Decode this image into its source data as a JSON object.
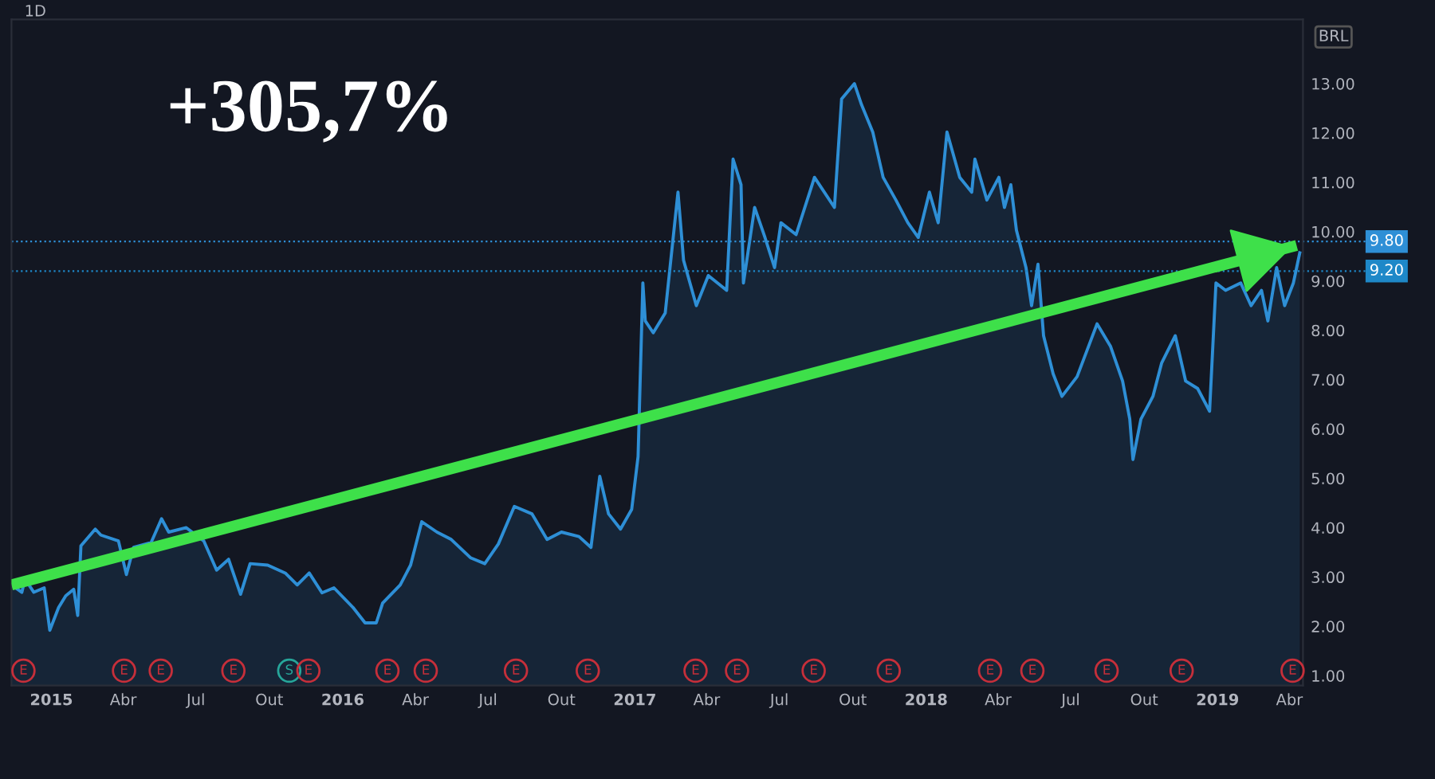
{
  "chart_data": {
    "type": "area",
    "title": "1D",
    "ylabel": "BRL",
    "annotations": [
      "+305,7%",
      {
        "text": "E",
        "x": "2014-11-27",
        "y": 1.1
      },
      {
        "text": "E",
        "x": "2015-04-02",
        "y": 1.1
      },
      {
        "text": "E",
        "x": "2015-05-18",
        "y": 1.1
      },
      {
        "text": "E",
        "x": "2015-08-17",
        "y": 1.1
      },
      {
        "text": "S",
        "x": "2015-10-26",
        "y": 1.1
      },
      {
        "text": "E",
        "x": "2015-11-19",
        "y": 1.1
      },
      {
        "text": "E",
        "x": "2016-02-26",
        "y": 1.1
      },
      {
        "text": "E",
        "x": "2016-04-14",
        "y": 1.1
      },
      {
        "text": "E",
        "x": "2016-08-05",
        "y": 1.1
      },
      {
        "text": "E",
        "x": "2016-11-03",
        "y": 1.1
      },
      {
        "text": "E",
        "x": "2017-03-18",
        "y": 1.1
      },
      {
        "text": "E",
        "x": "2017-05-09",
        "y": 1.1
      },
      {
        "text": "E",
        "x": "2017-08-13",
        "y": 1.1
      },
      {
        "text": "E",
        "x": "2017-11-15",
        "y": 1.1
      },
      {
        "text": "E",
        "x": "2018-03-22",
        "y": 1.1
      },
      {
        "text": "E",
        "x": "2018-05-14",
        "y": 1.1
      },
      {
        "text": "E",
        "x": "2018-08-15",
        "y": 1.1
      },
      {
        "text": "E",
        "x": "2018-11-17",
        "y": 1.1
      },
      {
        "text": "E",
        "x": "2019-04-05",
        "y": 1.1
      }
    ],
    "series": [
      {
        "type": "area",
        "color": "#2e8fd6",
        "x": [
          "2014-11-12",
          "2014-11-25",
          "2014-11-29",
          "2014-12-10",
          "2014-12-23",
          "2014-12-30",
          "2015-01-10",
          "2015-01-19",
          "2015-01-29",
          "2015-02-03",
          "2015-02-07",
          "2015-02-25",
          "2015-03-04",
          "2015-03-26",
          "2015-04-05",
          "2015-04-14",
          "2015-05-06",
          "2015-05-19",
          "2015-05-28",
          "2015-06-19",
          "2015-07-11",
          "2015-07-27",
          "2015-08-11",
          "2015-08-26",
          "2015-09-07",
          "2015-09-29",
          "2015-10-21",
          "2015-11-05",
          "2015-11-20",
          "2015-12-06",
          "2015-12-21",
          "2016-01-14",
          "2016-01-29",
          "2016-02-12",
          "2016-02-20",
          "2016-03-13",
          "2016-03-26",
          "2016-04-09",
          "2016-04-28",
          "2016-05-16",
          "2016-06-09",
          "2016-06-27",
          "2016-07-14",
          "2016-08-03",
          "2016-08-25",
          "2016-09-13",
          "2016-10-01",
          "2016-10-23",
          "2016-11-07",
          "2016-11-18",
          "2016-11-29",
          "2016-12-14",
          "2016-12-28",
          "2017-01-05",
          "2017-01-11",
          "2017-01-14",
          "2017-01-24",
          "2017-02-08",
          "2017-02-24",
          "2017-03-03",
          "2017-03-11",
          "2017-03-19",
          "2017-04-03",
          "2017-04-26",
          "2017-05-04",
          "2017-05-14",
          "2017-05-17",
          "2017-05-31",
          "2017-06-13",
          "2017-06-25",
          "2017-07-03",
          "2017-07-22",
          "2017-08-14",
          "2017-09-08",
          "2017-09-17",
          "2017-10-03",
          "2017-10-12",
          "2017-10-26",
          "2017-11-08",
          "2017-11-24",
          "2017-12-09",
          "2017-12-22",
          "2018-01-05",
          "2018-01-16",
          "2018-01-27",
          "2018-02-12",
          "2018-02-27",
          "2018-03-03",
          "2018-03-18",
          "2018-04-02",
          "2018-04-09",
          "2018-04-17",
          "2018-04-24",
          "2018-05-06",
          "2018-05-13",
          "2018-05-21",
          "2018-05-28",
          "2018-06-09",
          "2018-06-20",
          "2018-07-09",
          "2018-08-03",
          "2018-08-20",
          "2018-09-04",
          "2018-09-13",
          "2018-09-17",
          "2018-09-27",
          "2018-10-12",
          "2018-10-23",
          "2018-11-09",
          "2018-11-22",
          "2018-12-07",
          "2018-12-22",
          "2018-12-30",
          "2019-01-11",
          "2019-01-30",
          "2019-02-12",
          "2019-02-25",
          "2019-03-05",
          "2019-03-16",
          "2019-03-26",
          "2019-04-06",
          "2019-04-14"
        ],
        "values": [
          2.84,
          2.69,
          2.96,
          2.69,
          2.78,
          1.92,
          2.38,
          2.62,
          2.75,
          2.22,
          3.63,
          3.97,
          3.85,
          3.73,
          3.05,
          3.6,
          3.7,
          4.18,
          3.91,
          4.0,
          3.73,
          3.14,
          3.36,
          2.65,
          3.27,
          3.24,
          3.08,
          2.84,
          3.08,
          2.68,
          2.78,
          2.38,
          2.07,
          2.07,
          2.47,
          2.84,
          3.24,
          4.12,
          3.91,
          3.76,
          3.39,
          3.27,
          3.67,
          4.43,
          4.28,
          3.76,
          3.91,
          3.82,
          3.6,
          5.04,
          4.28,
          3.97,
          4.37,
          5.44,
          8.96,
          8.19,
          7.95,
          8.35,
          10.8,
          9.42,
          8.96,
          8.5,
          9.11,
          8.81,
          11.47,
          10.95,
          8.96,
          10.49,
          9.88,
          9.27,
          10.18,
          9.94,
          11.1,
          10.49,
          12.69,
          13.0,
          12.57,
          12.02,
          11.1,
          10.64,
          10.18,
          9.88,
          10.8,
          10.18,
          12.02,
          11.1,
          10.8,
          11.47,
          10.64,
          11.1,
          10.49,
          10.95,
          10.03,
          9.27,
          8.5,
          9.34,
          7.89,
          7.12,
          6.66,
          7.06,
          8.13,
          7.67,
          6.97,
          6.2,
          5.38,
          6.2,
          6.66,
          7.34,
          7.89,
          6.97,
          6.82,
          6.36,
          8.96,
          8.81,
          8.96,
          8.5,
          8.81,
          8.19,
          9.27,
          8.5,
          8.96,
          9.57
        ]
      },
      {
        "type": "line",
        "color": "#3ee04a",
        "x": [
          "2014-11-12",
          "2019-04-10"
        ],
        "values": [
          2.84,
          9.72
        ]
      }
    ],
    "xlim": [
      "2014-11-12",
      "2019-04-18"
    ],
    "ylim": [
      0.8,
      14.3
    ],
    "xticks": [
      {
        "value": "2015-01-01",
        "label": "2015"
      },
      {
        "value": "2015-04-01",
        "label": "Abr"
      },
      {
        "value": "2015-07-01",
        "label": "Jul"
      },
      {
        "value": "2015-10-01",
        "label": "Out"
      },
      {
        "value": "2016-01-01",
        "label": "2016"
      },
      {
        "value": "2016-04-01",
        "label": "Abr"
      },
      {
        "value": "2016-07-01",
        "label": "Jul"
      },
      {
        "value": "2016-10-01",
        "label": "Out"
      },
      {
        "value": "2017-01-01",
        "label": "2017"
      },
      {
        "value": "2017-04-01",
        "label": "Abr"
      },
      {
        "value": "2017-07-01",
        "label": "Jul"
      },
      {
        "value": "2017-10-01",
        "label": "Out"
      },
      {
        "value": "2018-01-01",
        "label": "2018"
      },
      {
        "value": "2018-04-01",
        "label": "Abr"
      },
      {
        "value": "2018-07-01",
        "label": "Jul"
      },
      {
        "value": "2018-10-01",
        "label": "Out"
      },
      {
        "value": "2019-01-01",
        "label": "2019"
      },
      {
        "value": "2019-04-01",
        "label": "Abr"
      }
    ],
    "yticks": [
      {
        "value": 1,
        "label": "1.00"
      },
      {
        "value": 2,
        "label": "2.00"
      },
      {
        "value": 3,
        "label": "3.00"
      },
      {
        "value": 4,
        "label": "4.00"
      },
      {
        "value": 5,
        "label": "5.00"
      },
      {
        "value": 6,
        "label": "6.00"
      },
      {
        "value": 7,
        "label": "7.00"
      },
      {
        "value": 8,
        "label": "8.00"
      },
      {
        "value": 9,
        "label": "9.00"
      },
      {
        "value": 10,
        "label": "10.00"
      },
      {
        "value": 11,
        "label": "11.00"
      },
      {
        "value": 12,
        "label": "12.00"
      },
      {
        "value": 13,
        "label": "13.00"
      }
    ],
    "ref_lines": [
      {
        "axis": "y",
        "value": 9.8,
        "label": "9.80",
        "color": "#2e8fd6",
        "line_style": "dotted"
      },
      {
        "axis": "y",
        "value": 9.2,
        "label": "9.20",
        "color": "#1e88c8",
        "line_style": "dotted"
      }
    ]
  }
}
